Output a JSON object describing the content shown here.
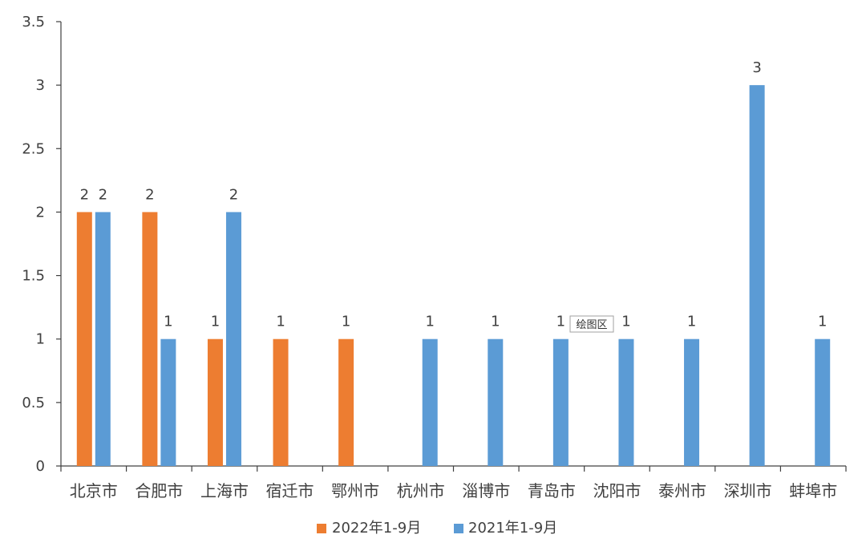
{
  "chart_data": {
    "type": "bar",
    "categories": [
      "北京市",
      "合肥市",
      "上海市",
      "宿迁市",
      "鄂州市",
      "杭州市",
      "淄博市",
      "青岛市",
      "沈阳市",
      "泰州市",
      "深圳市",
      "蚌埠市"
    ],
    "series": [
      {
        "name": "2022年1-9月",
        "color": "#ED7D31",
        "values": [
          2,
          2,
          1,
          1,
          1,
          null,
          null,
          null,
          null,
          null,
          null,
          null
        ]
      },
      {
        "name": "2021年1-9月",
        "color": "#5B9BD5",
        "values": [
          2,
          1,
          2,
          null,
          null,
          1,
          1,
          1,
          1,
          1,
          3,
          1
        ]
      }
    ],
    "ylim": [
      0,
      3.5
    ],
    "yticks": [
      "0",
      "0.5",
      "1",
      "1.5",
      "2",
      "2.5",
      "3",
      "3.5"
    ],
    "ytick_values": [
      0,
      0.5,
      1,
      1.5,
      2,
      2.5,
      3,
      3.5
    ],
    "grid": false,
    "legend_position": "bottom"
  },
  "tooltip": {
    "text": "绘图区"
  }
}
